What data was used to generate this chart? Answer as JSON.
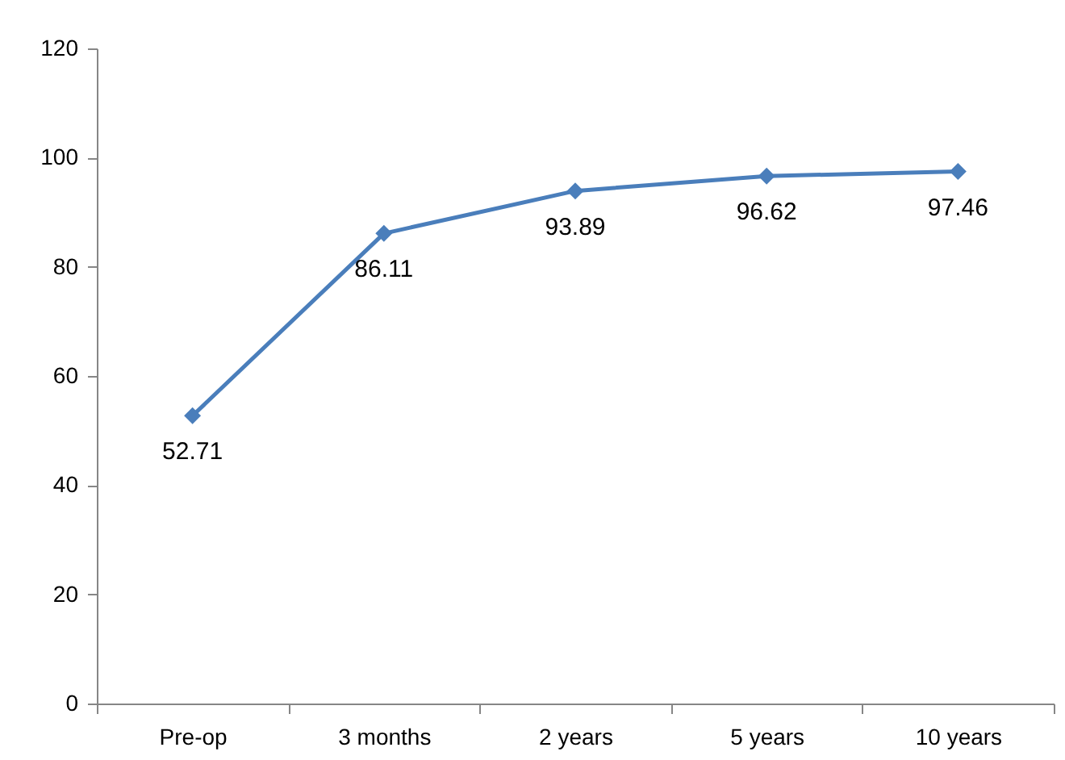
{
  "chart_data": {
    "type": "line",
    "categories": [
      "Pre-op",
      "3 months",
      "2 years",
      "5 years",
      "10 years"
    ],
    "series": [
      {
        "color": "#4a7ebb",
        "values": [
          52.71,
          86.11,
          93.89,
          96.62,
          97.46
        ]
      }
    ],
    "ylim": [
      0,
      120
    ],
    "yticks": [
      0,
      20,
      40,
      60,
      80,
      100,
      120
    ],
    "grid": false,
    "legend": false,
    "marker": "diamond",
    "line_style": "solid",
    "data_labels": true
  }
}
